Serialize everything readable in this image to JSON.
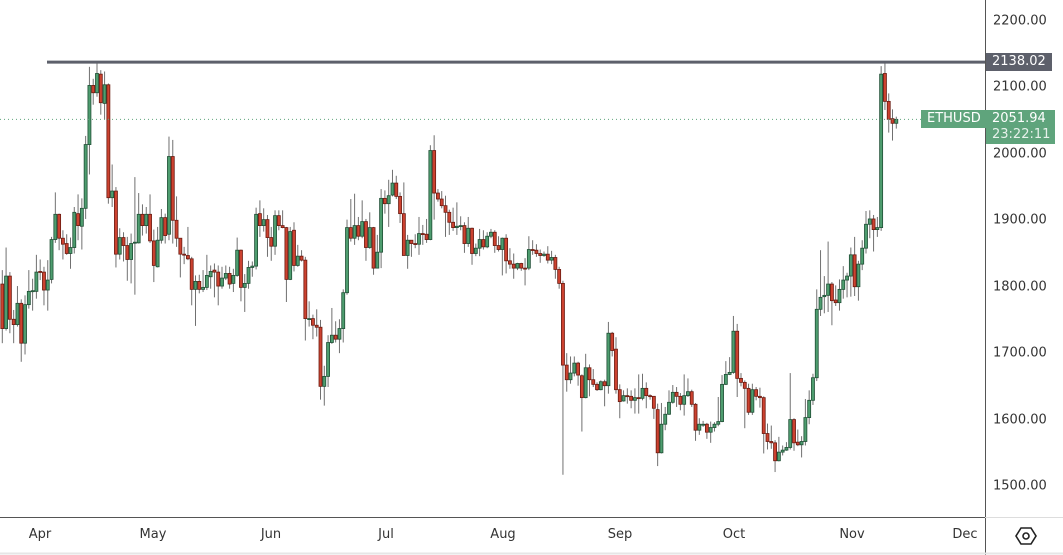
{
  "chart_data": {
    "type": "candlestick",
    "symbol": "ETHUSD",
    "last_price": "2051.94",
    "countdown": "23:22:11",
    "resistance_level": "2138.02",
    "ylim": [
      1500,
      2200
    ],
    "y_ticks": [
      "2200.00",
      "2100.00",
      "2000.00",
      "1900.00",
      "1800.00",
      "1700.00",
      "1600.00",
      "1500.00"
    ],
    "x_ticks": [
      "Apr",
      "May",
      "Jun",
      "Jul",
      "Aug",
      "Sep",
      "Oct",
      "Nov",
      "Dec"
    ],
    "colors": {
      "up": "#4e9d6f",
      "up_border": "#1f4f35",
      "down": "#cc4230",
      "down_border": "#6b1a10",
      "level_line": "#5d606b",
      "last_price": "#5fa47c"
    },
    "candles_ohlc": [
      [
        1804,
        1825,
        1715,
        1737
      ],
      [
        1737,
        1859,
        1734,
        1816
      ],
      [
        1816,
        1822,
        1730,
        1751
      ],
      [
        1751,
        1765,
        1715,
        1743
      ],
      [
        1743,
        1801,
        1740,
        1775
      ],
      [
        1775,
        1781,
        1687,
        1715
      ],
      [
        1715,
        1787,
        1698,
        1773
      ],
      [
        1773,
        1825,
        1767,
        1793
      ],
      [
        1793,
        1812,
        1764,
        1794
      ],
      [
        1793,
        1848,
        1782,
        1822
      ],
      [
        1823,
        1841,
        1810,
        1822
      ],
      [
        1822,
        1830,
        1772,
        1795
      ],
      [
        1795,
        1840,
        1764,
        1810
      ],
      [
        1811,
        1875,
        1805,
        1871
      ],
      [
        1871,
        1942,
        1866,
        1909
      ],
      [
        1909,
        1910,
        1855,
        1873
      ],
      [
        1873,
        1885,
        1841,
        1864
      ],
      [
        1865,
        1879,
        1848,
        1850
      ],
      [
        1850,
        1874,
        1827,
        1859
      ],
      [
        1859,
        1920,
        1850,
        1912
      ],
      [
        1910,
        1939,
        1870,
        1892
      ],
      [
        1891,
        1933,
        1856,
        1918
      ],
      [
        1918,
        2027,
        1902,
        2014
      ],
      [
        2014,
        2131,
        1969,
        2103
      ],
      [
        2103,
        2113,
        2074,
        2092
      ],
      [
        2092,
        2138,
        2086,
        2121
      ],
      [
        2120,
        2126,
        2059,
        2077
      ],
      [
        2076,
        2124,
        2052,
        2104
      ],
      [
        2104,
        2106,
        1925,
        1934
      ],
      [
        1934,
        1984,
        1920,
        1944
      ],
      [
        1944,
        1950,
        1829,
        1849
      ],
      [
        1849,
        1888,
        1841,
        1874
      ],
      [
        1874,
        1882,
        1838,
        1862
      ],
      [
        1862,
        1875,
        1809,
        1841
      ],
      [
        1841,
        1880,
        1805,
        1865
      ],
      [
        1866,
        1965,
        1788,
        1867
      ],
      [
        1866,
        1941,
        1865,
        1909
      ],
      [
        1909,
        1924,
        1877,
        1892
      ],
      [
        1892,
        1920,
        1880,
        1909
      ],
      [
        1909,
        1939,
        1866,
        1869
      ],
      [
        1869,
        1886,
        1807,
        1832
      ],
      [
        1830,
        1890,
        1829,
        1870
      ],
      [
        1870,
        1917,
        1865,
        1904
      ],
      [
        1904,
        1910,
        1865,
        1877
      ],
      [
        1879,
        2026,
        1870,
        1996
      ],
      [
        1996,
        2021,
        1865,
        1900
      ],
      [
        1900,
        1936,
        1860,
        1873
      ],
      [
        1873,
        1873,
        1814,
        1849
      ],
      [
        1849,
        1860,
        1834,
        1848
      ],
      [
        1847,
        1890,
        1840,
        1842
      ],
      [
        1842,
        1845,
        1772,
        1796
      ],
      [
        1796,
        1817,
        1741,
        1808
      ],
      [
        1808,
        1818,
        1790,
        1796
      ],
      [
        1796,
        1825,
        1792,
        1799
      ],
      [
        1799,
        1848,
        1795,
        1817
      ],
      [
        1815,
        1832,
        1797,
        1823
      ],
      [
        1825,
        1835,
        1784,
        1822
      ],
      [
        1822,
        1832,
        1772,
        1801
      ],
      [
        1801,
        1830,
        1797,
        1813
      ],
      [
        1813,
        1832,
        1810,
        1820
      ],
      [
        1820,
        1830,
        1797,
        1804
      ],
      [
        1805,
        1827,
        1792,
        1817
      ],
      [
        1817,
        1874,
        1815,
        1855
      ],
      [
        1855,
        1856,
        1778,
        1799
      ],
      [
        1799,
        1819,
        1762,
        1805
      ],
      [
        1805,
        1839,
        1797,
        1829
      ],
      [
        1829,
        1838,
        1815,
        1831
      ],
      [
        1831,
        1919,
        1826,
        1909
      ],
      [
        1910,
        1930,
        1875,
        1892
      ],
      [
        1892,
        1918,
        1883,
        1901
      ],
      [
        1901,
        1908,
        1845,
        1874
      ],
      [
        1874,
        1890,
        1839,
        1861
      ],
      [
        1861,
        1915,
        1848,
        1907
      ],
      [
        1907,
        1915,
        1885,
        1892
      ],
      [
        1892,
        1915,
        1888,
        1889
      ],
      [
        1889,
        1890,
        1777,
        1811
      ],
      [
        1811,
        1890,
        1810,
        1883
      ],
      [
        1885,
        1897,
        1823,
        1832
      ],
      [
        1832,
        1863,
        1830,
        1846
      ],
      [
        1846,
        1855,
        1838,
        1840
      ],
      [
        1840,
        1845,
        1719,
        1752
      ],
      [
        1752,
        1778,
        1740,
        1752
      ],
      [
        1752,
        1758,
        1721,
        1742
      ],
      [
        1742,
        1766,
        1725,
        1739
      ],
      [
        1739,
        1750,
        1630,
        1650
      ],
      [
        1650,
        1681,
        1621,
        1665
      ],
      [
        1665,
        1727,
        1649,
        1716
      ],
      [
        1716,
        1768,
        1714,
        1727
      ],
      [
        1727,
        1748,
        1716,
        1721
      ],
      [
        1721,
        1751,
        1700,
        1737
      ],
      [
        1737,
        1796,
        1716,
        1791
      ],
      [
        1791,
        1901,
        1788,
        1889
      ],
      [
        1889,
        1932,
        1868,
        1873
      ],
      [
        1873,
        1940,
        1863,
        1892
      ],
      [
        1892,
        1905,
        1870,
        1876
      ],
      [
        1876,
        1930,
        1873,
        1898
      ],
      [
        1898,
        1902,
        1839,
        1859
      ],
      [
        1859,
        1912,
        1857,
        1889
      ],
      [
        1889,
        1890,
        1818,
        1828
      ],
      [
        1828,
        1878,
        1828,
        1852
      ],
      [
        1852,
        1947,
        1828,
        1933
      ],
      [
        1933,
        1945,
        1910,
        1925
      ],
      [
        1925,
        1961,
        1890,
        1937
      ],
      [
        1938,
        1976,
        1936,
        1956
      ],
      [
        1956,
        1967,
        1932,
        1936
      ],
      [
        1936,
        1942,
        1896,
        1910
      ],
      [
        1910,
        1957,
        1847,
        1847
      ],
      [
        1847,
        1878,
        1827,
        1870
      ],
      [
        1870,
        1870,
        1845,
        1865
      ],
      [
        1865,
        1879,
        1858,
        1864
      ],
      [
        1864,
        1905,
        1848,
        1880
      ],
      [
        1880,
        1893,
        1863,
        1879
      ],
      [
        1879,
        1902,
        1866,
        1871
      ],
      [
        1871,
        2013,
        1870,
        2005
      ],
      [
        2005,
        2028,
        1901,
        1941
      ],
      [
        1941,
        1947,
        1928,
        1932
      ],
      [
        1932,
        1944,
        1918,
        1922
      ],
      [
        1922,
        1937,
        1875,
        1912
      ],
      [
        1912,
        1916,
        1878,
        1897
      ],
      [
        1897,
        1919,
        1884,
        1889
      ],
      [
        1889,
        1927,
        1878,
        1891
      ],
      [
        1891,
        1906,
        1885,
        1892
      ],
      [
        1892,
        1897,
        1851,
        1865
      ],
      [
        1865,
        1905,
        1860,
        1888
      ],
      [
        1888,
        1889,
        1833,
        1850
      ],
      [
        1850,
        1865,
        1846,
        1858
      ],
      [
        1858,
        1887,
        1846,
        1871
      ],
      [
        1871,
        1885,
        1856,
        1860
      ],
      [
        1860,
        1882,
        1858,
        1876
      ],
      [
        1876,
        1887,
        1873,
        1882
      ],
      [
        1882,
        1885,
        1851,
        1862
      ],
      [
        1862,
        1876,
        1853,
        1856
      ],
      [
        1856,
        1874,
        1817,
        1873
      ],
      [
        1873,
        1879,
        1820,
        1839
      ],
      [
        1839,
        1858,
        1827,
        1834
      ],
      [
        1834,
        1850,
        1812,
        1828
      ],
      [
        1828,
        1836,
        1825,
        1835
      ],
      [
        1835,
        1836,
        1824,
        1828
      ],
      [
        1828,
        1843,
        1802,
        1827
      ],
      [
        1828,
        1876,
        1825,
        1856
      ],
      [
        1856,
        1870,
        1848,
        1855
      ],
      [
        1855,
        1864,
        1845,
        1850
      ],
      [
        1850,
        1856,
        1836,
        1847
      ],
      [
        1847,
        1853,
        1845,
        1849
      ],
      [
        1849,
        1861,
        1835,
        1840
      ],
      [
        1840,
        1854,
        1834,
        1844
      ],
      [
        1844,
        1848,
        1812,
        1826
      ],
      [
        1826,
        1830,
        1797,
        1805
      ],
      [
        1805,
        1809,
        1517,
        1682
      ],
      [
        1682,
        1700,
        1642,
        1660
      ],
      [
        1660,
        1695,
        1654,
        1670
      ],
      [
        1670,
        1695,
        1665,
        1685
      ],
      [
        1685,
        1687,
        1651,
        1667
      ],
      [
        1666,
        1668,
        1582,
        1633
      ],
      [
        1633,
        1699,
        1632,
        1678
      ],
      [
        1678,
        1683,
        1635,
        1660
      ],
      [
        1660,
        1676,
        1649,
        1653
      ],
      [
        1653,
        1656,
        1643,
        1645
      ],
      [
        1645,
        1659,
        1644,
        1657
      ],
      [
        1657,
        1660,
        1620,
        1651
      ],
      [
        1651,
        1747,
        1639,
        1730
      ],
      [
        1730,
        1732,
        1695,
        1704
      ],
      [
        1706,
        1724,
        1639,
        1645
      ],
      [
        1645,
        1653,
        1602,
        1627
      ],
      [
        1628,
        1644,
        1627,
        1636
      ],
      [
        1636,
        1647,
        1624,
        1635
      ],
      [
        1635,
        1644,
        1617,
        1629
      ],
      [
        1629,
        1647,
        1609,
        1633
      ],
      [
        1633,
        1668,
        1609,
        1632
      ],
      [
        1632,
        1669,
        1629,
        1647
      ],
      [
        1647,
        1656,
        1617,
        1636
      ],
      [
        1636,
        1638,
        1630,
        1635
      ],
      [
        1635,
        1635,
        1601,
        1617
      ],
      [
        1615,
        1624,
        1530,
        1550
      ],
      [
        1550,
        1625,
        1549,
        1593
      ],
      [
        1593,
        1619,
        1584,
        1608
      ],
      [
        1608,
        1644,
        1607,
        1626
      ],
      [
        1626,
        1652,
        1624,
        1641
      ],
      [
        1641,
        1649,
        1619,
        1635
      ],
      [
        1635,
        1640,
        1614,
        1623
      ],
      [
        1623,
        1668,
        1606,
        1636
      ],
      [
        1636,
        1662,
        1634,
        1642
      ],
      [
        1642,
        1645,
        1619,
        1623
      ],
      [
        1623,
        1625,
        1568,
        1584
      ],
      [
        1584,
        1602,
        1577,
        1593
      ],
      [
        1593,
        1598,
        1589,
        1593
      ],
      [
        1593,
        1595,
        1571,
        1581
      ],
      [
        1581,
        1597,
        1565,
        1588
      ],
      [
        1588,
        1596,
        1582,
        1593
      ],
      [
        1593,
        1634,
        1590,
        1597
      ],
      [
        1597,
        1667,
        1596,
        1653
      ],
      [
        1653,
        1688,
        1652,
        1668
      ],
      [
        1668,
        1694,
        1667,
        1671
      ],
      [
        1671,
        1756,
        1669,
        1733
      ],
      [
        1733,
        1744,
        1634,
        1662
      ],
      [
        1662,
        1670,
        1650,
        1656
      ],
      [
        1656,
        1659,
        1587,
        1647
      ],
      [
        1647,
        1654,
        1607,
        1611
      ],
      [
        1611,
        1654,
        1607,
        1645
      ],
      [
        1645,
        1649,
        1629,
        1635
      ],
      [
        1635,
        1648,
        1618,
        1633
      ],
      [
        1633,
        1635,
        1549,
        1579
      ],
      [
        1579,
        1594,
        1555,
        1567
      ],
      [
        1567,
        1591,
        1556,
        1565
      ],
      [
        1565,
        1569,
        1521,
        1538
      ],
      [
        1538,
        1574,
        1537,
        1551
      ],
      [
        1551,
        1561,
        1546,
        1554
      ],
      [
        1554,
        1566,
        1553,
        1558
      ],
      [
        1558,
        1670,
        1555,
        1600
      ],
      [
        1600,
        1602,
        1553,
        1565
      ],
      [
        1566,
        1585,
        1560,
        1562
      ],
      [
        1562,
        1575,
        1543,
        1567
      ],
      [
        1567,
        1631,
        1561,
        1603
      ],
      [
        1603,
        1644,
        1593,
        1629
      ],
      [
        1629,
        1669,
        1622,
        1663
      ],
      [
        1663,
        1796,
        1658,
        1766
      ],
      [
        1766,
        1855,
        1756,
        1784
      ],
      [
        1785,
        1816,
        1760,
        1787
      ],
      [
        1787,
        1868,
        1762,
        1804
      ],
      [
        1804,
        1807,
        1742,
        1779
      ],
      [
        1780,
        1802,
        1771,
        1776
      ],
      [
        1776,
        1811,
        1764,
        1796
      ],
      [
        1796,
        1831,
        1782,
        1810
      ],
      [
        1810,
        1821,
        1784,
        1816
      ],
      [
        1816,
        1859,
        1785,
        1848
      ],
      [
        1848,
        1875,
        1786,
        1800
      ],
      [
        1800,
        1839,
        1779,
        1834
      ],
      [
        1834,
        1870,
        1825,
        1858
      ],
      [
        1858,
        1914,
        1850,
        1894
      ],
      [
        1894,
        1915,
        1873,
        1902
      ],
      [
        1902,
        1908,
        1853,
        1886
      ],
      [
        1886,
        1905,
        1875,
        1889
      ],
      [
        1889,
        2132,
        1884,
        2120
      ],
      [
        2121,
        2137,
        2066,
        2079
      ],
      [
        2079,
        2091,
        2032,
        2052
      ],
      [
        2053,
        2067,
        2020,
        2046
      ],
      [
        2046,
        2056,
        2038,
        2051.94
      ]
    ]
  }
}
